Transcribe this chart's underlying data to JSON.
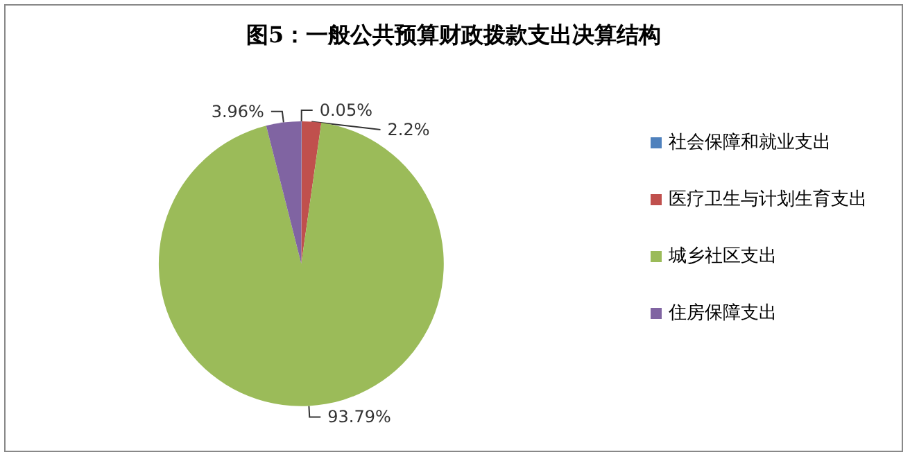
{
  "chart_data": {
    "type": "pie",
    "title": "图5：一般公共预算财政拨款支出决算结构",
    "categories": [
      "社会保障和就业支出",
      "医疗卫生与计划生育支出",
      "城乡社区支出",
      "住房保障支出"
    ],
    "values": [
      0.05,
      2.2,
      93.79,
      3.96
    ],
    "colors": [
      "#4f81bd",
      "#c0504d",
      "#9bbb59",
      "#8064a2"
    ],
    "value_labels": [
      "0.05%",
      "2.2%",
      "93.79%",
      "3.96%"
    ],
    "legend": "right"
  }
}
